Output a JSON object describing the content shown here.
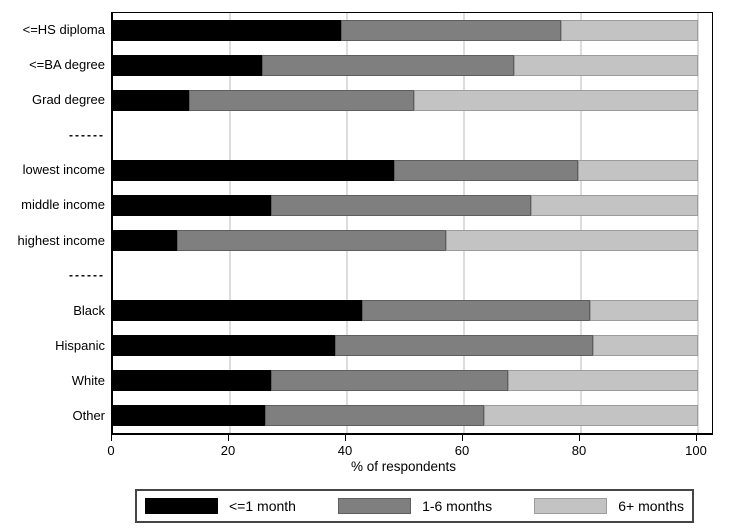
{
  "chart_data": {
    "type": "bar",
    "orientation": "horizontal",
    "stacked": true,
    "xlabel": "% of respondents",
    "xlim": [
      0,
      100
    ],
    "xticks": [
      0,
      20,
      40,
      60,
      80,
      100
    ],
    "grid": true,
    "legend_position": "bottom-outside",
    "categories": [
      "<=HS diploma",
      "<=BA degree",
      "Grad degree",
      "------",
      "lowest income",
      "middle income",
      "highest income",
      "------",
      "Black",
      "Hispanic",
      "White",
      "Other"
    ],
    "series": [
      {
        "name": "<=1 month",
        "color": "#000000",
        "outline_color": "#000000",
        "values": [
          39,
          25.5,
          13,
          null,
          48,
          27,
          11,
          null,
          42.5,
          38,
          27,
          26
        ]
      },
      {
        "name": "1-6 months",
        "color": "#7f7f7f",
        "outline_color": "#5e5e5e",
        "values": [
          37.5,
          43,
          38.5,
          null,
          31.5,
          44.5,
          46,
          null,
          39,
          44,
          40.5,
          37.5
        ]
      },
      {
        "name": "6+ months",
        "color": "#c3c3c3",
        "outline_color": "#9c9c9c",
        "values": [
          23.5,
          31.5,
          48.5,
          null,
          20.5,
          28.5,
          43,
          null,
          18.5,
          18,
          32.5,
          36.5
        ]
      }
    ]
  },
  "style": {
    "background": "#ffffff",
    "axis_color": "#000000",
    "grid_color": "#ddddde",
    "legend_border_color": "#454545"
  }
}
